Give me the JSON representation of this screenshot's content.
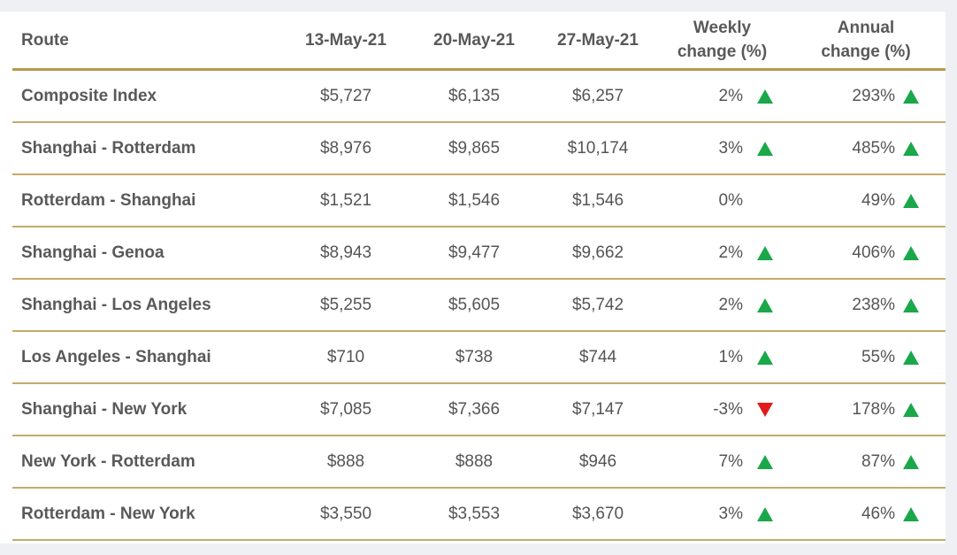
{
  "chart_data": {
    "type": "table",
    "columns": [
      "Route",
      "13-May-21",
      "20-May-21",
      "27-May-21",
      "Weekly change (%)",
      "Annual change (%)"
    ],
    "header": {
      "route": "Route",
      "d1": "13-May-21",
      "d2": "20-May-21",
      "d3": "27-May-21",
      "weekly_line1": "Weekly",
      "weekly_line2": "change (%)",
      "annual_line1": "Annual",
      "annual_line2": "change (%)"
    },
    "rows": [
      {
        "route": "Composite Index",
        "d1": "$5,727",
        "d2": "$6,135",
        "d3": "$6,257",
        "weekly": "2%",
        "weekly_dir": "up",
        "annual": "293%",
        "annual_dir": "up"
      },
      {
        "route": "Shanghai - Rotterdam",
        "d1": "$8,976",
        "d2": "$9,865",
        "d3": "$10,174",
        "weekly": "3%",
        "weekly_dir": "up",
        "annual": "485%",
        "annual_dir": "up"
      },
      {
        "route": "Rotterdam - Shanghai",
        "d1": "$1,521",
        "d2": "$1,546",
        "d3": "$1,546",
        "weekly": "0%",
        "weekly_dir": "none",
        "annual": "49%",
        "annual_dir": "up"
      },
      {
        "route": "Shanghai - Genoa",
        "d1": "$8,943",
        "d2": "$9,477",
        "d3": "$9,662",
        "weekly": "2%",
        "weekly_dir": "up",
        "annual": "406%",
        "annual_dir": "up"
      },
      {
        "route": "Shanghai - Los Angeles",
        "d1": "$5,255",
        "d2": "$5,605",
        "d3": "$5,742",
        "weekly": "2%",
        "weekly_dir": "up",
        "annual": "238%",
        "annual_dir": "up"
      },
      {
        "route": "Los Angeles - Shanghai",
        "d1": "$710",
        "d2": "$738",
        "d3": "$744",
        "weekly": "1%",
        "weekly_dir": "up",
        "annual": "55%",
        "annual_dir": "up"
      },
      {
        "route": "Shanghai - New York",
        "d1": "$7,085",
        "d2": "$7,366",
        "d3": "$7,147",
        "weekly": "-3%",
        "weekly_dir": "down",
        "annual": "178%",
        "annual_dir": "up"
      },
      {
        "route": "New York - Rotterdam",
        "d1": "$888",
        "d2": "$888",
        "d3": "$946",
        "weekly": "7%",
        "weekly_dir": "up",
        "annual": "87%",
        "annual_dir": "up"
      },
      {
        "route": "Rotterdam - New York",
        "d1": "$3,550",
        "d2": "$3,553",
        "d3": "$3,670",
        "weekly": "3%",
        "weekly_dir": "up",
        "annual": "46%",
        "annual_dir": "up"
      }
    ],
    "colors": {
      "up": "#1aa84a",
      "down": "#e21a1a",
      "rule": "#c4ab6c",
      "text": "#555555",
      "page_background": "#eef0f3"
    }
  }
}
